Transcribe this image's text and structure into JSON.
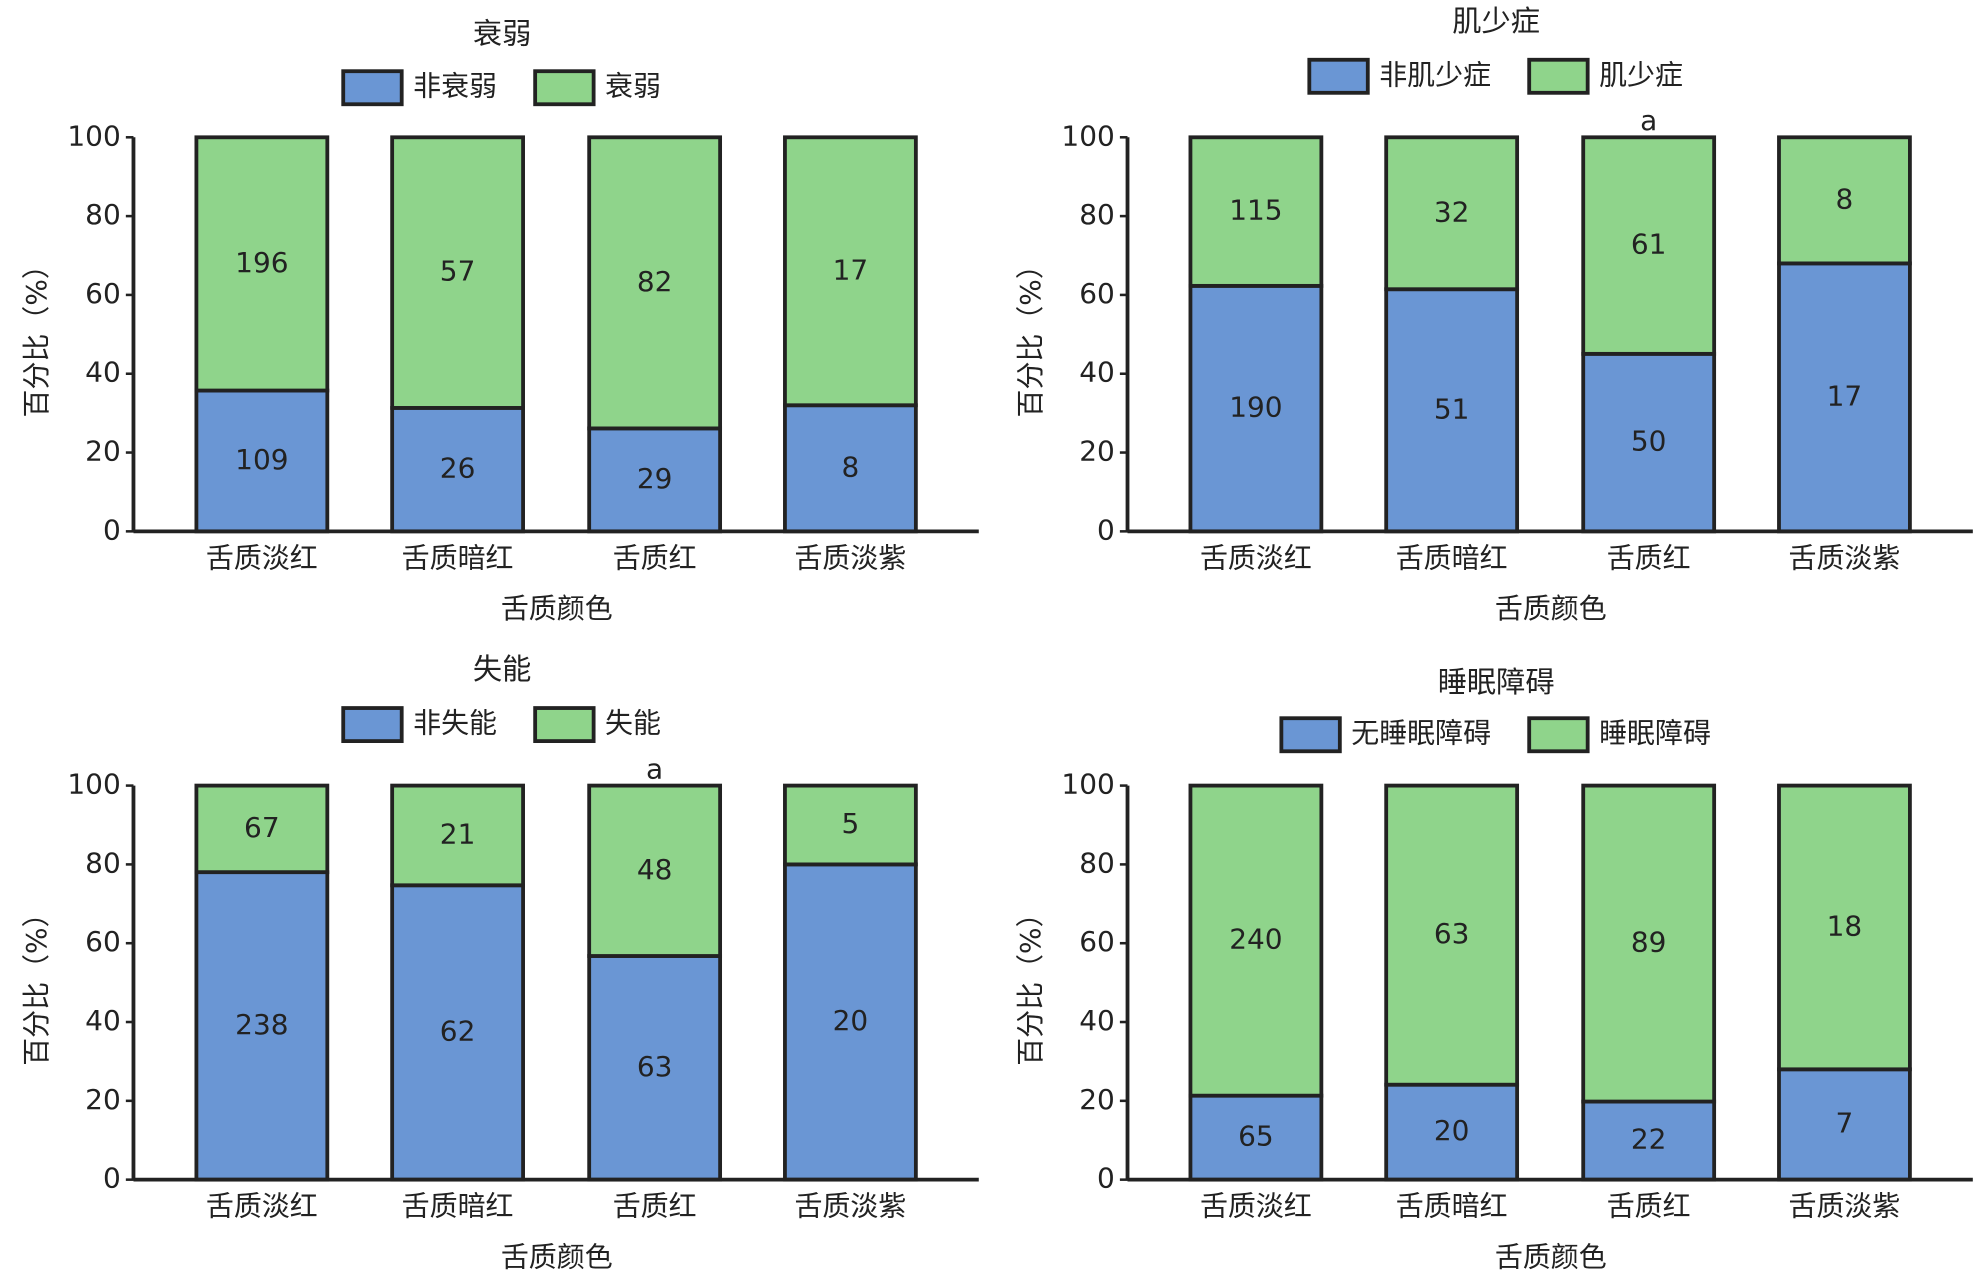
{
  "chart_data": [
    {
      "type": "bar",
      "stacking": "percent",
      "title": "衰弱",
      "categories": [
        "舌质淡红",
        "舌质暗红",
        "舌质红",
        "舌质淡紫"
      ],
      "series": [
        {
          "name": "非衰弱",
          "color": "#6a96d4",
          "values": [
            109,
            26,
            29,
            8
          ]
        },
        {
          "name": "衰弱",
          "color": "#8fd48b",
          "values": [
            196,
            57,
            82,
            17
          ]
        }
      ],
      "ylim": [
        0,
        100
      ],
      "yticks": [
        0,
        20,
        40,
        60,
        80,
        100
      ],
      "xlabel": "舌质颜色",
      "ylabel": "百分比（%）"
    },
    {
      "type": "bar",
      "stacking": "percent",
      "title": "肌少症",
      "categories": [
        "舌质淡红",
        "舌质暗红",
        "舌质红",
        "舌质淡紫"
      ],
      "series": [
        {
          "name": "非肌少症",
          "color": "#6a96d4",
          "values": [
            190,
            51,
            50,
            17
          ]
        },
        {
          "name": "肌少症",
          "color": "#8fd48b",
          "values": [
            115,
            32,
            61,
            8
          ]
        }
      ],
      "ylim": [
        0,
        100
      ],
      "yticks": [
        0,
        20,
        40,
        60,
        80,
        100
      ],
      "xlabel": "舌质颜色",
      "ylabel": "百分比（%）",
      "annotations": [
        {
          "text": "a",
          "category": "舌质红"
        }
      ]
    },
    {
      "type": "bar",
      "stacking": "percent",
      "title": "失能",
      "categories": [
        "舌质淡红",
        "舌质暗红",
        "舌质红",
        "舌质淡紫"
      ],
      "series": [
        {
          "name": "非失能",
          "color": "#6a96d4",
          "values": [
            238,
            62,
            63,
            20
          ]
        },
        {
          "name": "失能",
          "color": "#8fd48b",
          "values": [
            67,
            21,
            48,
            5
          ]
        }
      ],
      "ylim": [
        0,
        100
      ],
      "yticks": [
        0,
        20,
        40,
        60,
        80,
        100
      ],
      "xlabel": "舌质颜色",
      "ylabel": "百分比（%）",
      "annotations": [
        {
          "text": "a",
          "category": "舌质红"
        }
      ]
    },
    {
      "type": "bar",
      "stacking": "percent",
      "title": "睡眠障碍",
      "categories": [
        "舌质淡红",
        "舌质暗红",
        "舌质红",
        "舌质淡紫"
      ],
      "series": [
        {
          "name": "无睡眠障碍",
          "color": "#6a96d4",
          "values": [
            65,
            20,
            22,
            7
          ]
        },
        {
          "name": "睡眠障碍",
          "color": "#8fd48b",
          "values": [
            240,
            63,
            89,
            18
          ]
        }
      ],
      "ylim": [
        0,
        100
      ],
      "yticks": [
        0,
        20,
        40,
        60,
        80,
        100
      ],
      "xlabel": "舌质颜色",
      "ylabel": "百分比（%）"
    }
  ]
}
